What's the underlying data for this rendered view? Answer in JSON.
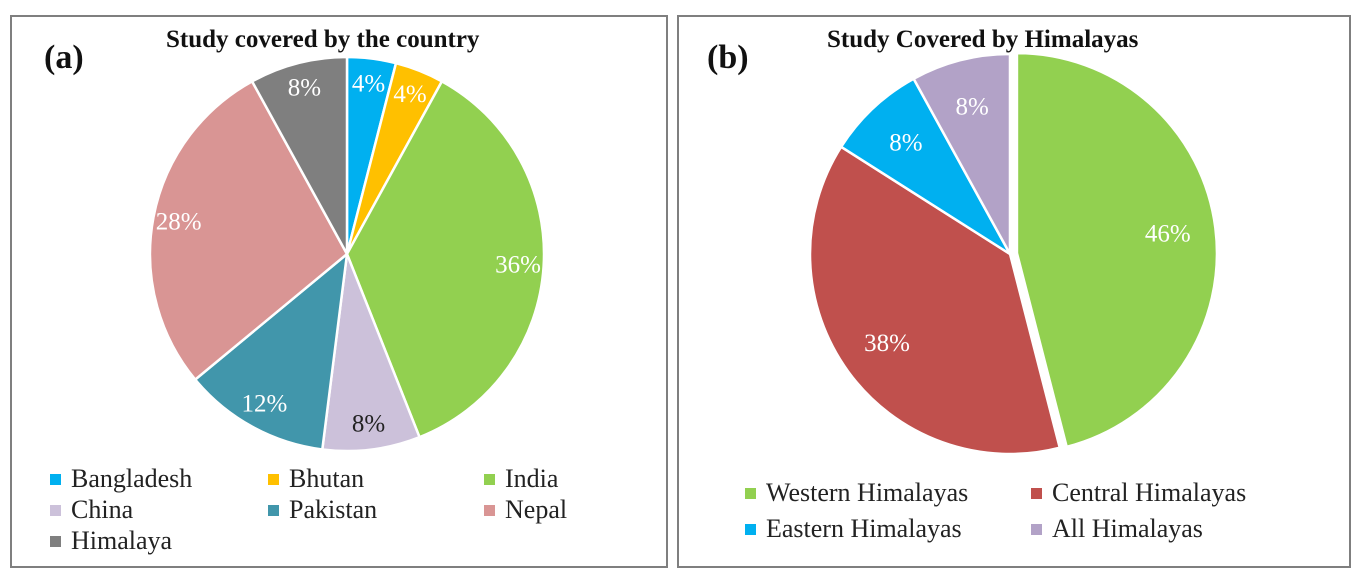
{
  "chart_data": [
    {
      "type": "pie",
      "panel_label": "(a)",
      "title": "Study covered by the country",
      "slices": [
        {
          "label": "Bangladesh",
          "value": 4,
          "display": "4%",
          "color": "#00b0f0",
          "text_color": "#ffffff"
        },
        {
          "label": "Bhutan",
          "value": 4,
          "display": "4%",
          "color": "#ffc000",
          "text_color": "#ffffff"
        },
        {
          "label": "India",
          "value": 36,
          "display": "36%",
          "color": "#92d050",
          "text_color": "#ffffff"
        },
        {
          "label": "China",
          "value": 8,
          "display": "8%",
          "color": "#ccc1da",
          "text_color": "#222222"
        },
        {
          "label": "Pakistan",
          "value": 12,
          "display": "12%",
          "color": "#4196ab",
          "text_color": "#ffffff"
        },
        {
          "label": "Nepal",
          "value": 28,
          "display": "28%",
          "color": "#d99594",
          "text_color": "#ffffff"
        },
        {
          "label": "Himalaya",
          "value": 8,
          "display": "8%",
          "color": "#7f7f7f",
          "text_color": "#ffffff"
        }
      ],
      "legend": [
        "Bangladesh",
        "Bhutan",
        "India",
        "China",
        "Pakistan",
        "Nepal",
        "Himalaya"
      ]
    },
    {
      "type": "pie",
      "panel_label": "(b)",
      "title": "Study Covered by Himalayas",
      "slices": [
        {
          "label": "Western Himalayas",
          "value": 46,
          "display": "46%",
          "color": "#92d050",
          "text_color": "#ffffff"
        },
        {
          "label": "Central Himalayas",
          "value": 38,
          "display": "38%",
          "color": "#c0504d",
          "text_color": "#ffffff"
        },
        {
          "label": "Eastern Himalayas",
          "value": 8,
          "display": "8%",
          "color": "#00b0f0",
          "text_color": "#ffffff"
        },
        {
          "label": "All Himalayas",
          "value": 8,
          "display": "8%",
          "color": "#b2a2c7",
          "text_color": "#ffffff"
        }
      ],
      "legend": [
        "Western Himalayas",
        "Central Himalayas",
        "Eastern Himalayas",
        "All Himalayas"
      ]
    }
  ]
}
